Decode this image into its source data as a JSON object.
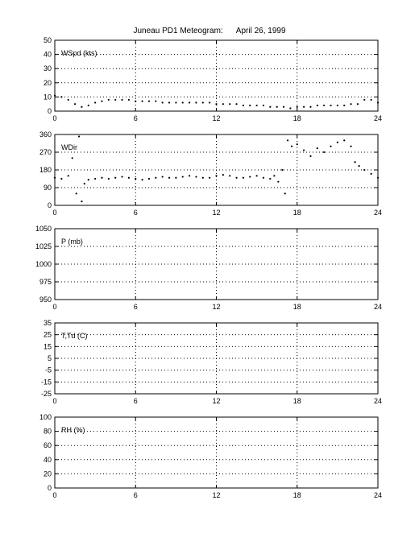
{
  "title": "Juneau PD1 Meteogram:      April 26, 1999",
  "chart_data": [
    {
      "type": "scatter",
      "name": "wind-speed",
      "label": "WSpd (kts)",
      "xlim": [
        0,
        24
      ],
      "ylim": [
        0,
        50
      ],
      "xticks": [
        0,
        6,
        12,
        18,
        24
      ],
      "yticks": [
        0,
        10,
        20,
        30,
        40,
        50
      ],
      "grid": true,
      "x": [
        0,
        0.5,
        1,
        1.5,
        2,
        2.5,
        3,
        3.5,
        4,
        4.5,
        5,
        5.5,
        6,
        6.5,
        7,
        7.5,
        8,
        8.5,
        9,
        9.5,
        10,
        10.5,
        11,
        11.5,
        12,
        12.5,
        13,
        13.5,
        14,
        14.5,
        15,
        15.5,
        16,
        16.5,
        17,
        17.5,
        18,
        18.5,
        19,
        19.5,
        20,
        20.5,
        21,
        21.5,
        22,
        22.5,
        23,
        23.5,
        24
      ],
      "y": [
        11,
        10,
        8,
        5,
        3,
        4,
        6,
        7,
        8,
        8,
        8,
        8,
        7,
        7,
        7,
        7,
        6,
        6,
        6,
        6,
        6,
        6,
        6,
        6,
        5,
        5,
        5,
        5,
        4,
        4,
        4,
        4,
        3,
        3,
        3,
        2,
        3,
        3,
        3,
        4,
        4,
        4,
        4,
        4,
        5,
        5,
        8,
        8,
        6
      ]
    },
    {
      "type": "scatter",
      "name": "wind-direction",
      "label": "WDir",
      "xlim": [
        0,
        24
      ],
      "ylim": [
        0,
        360
      ],
      "xticks": [
        0,
        6,
        12,
        18,
        24
      ],
      "yticks": [
        0,
        90,
        180,
        270,
        360
      ],
      "grid": true,
      "x": [
        0,
        0.5,
        1,
        1.3,
        1.6,
        1.8,
        2,
        2.2,
        2.5,
        3,
        3.5,
        4,
        4.5,
        5,
        5.5,
        6,
        6.5,
        7,
        7.5,
        8,
        8.5,
        9,
        9.5,
        10,
        10.5,
        11,
        11.5,
        12,
        12.5,
        13,
        13.5,
        14,
        14.5,
        15,
        15.5,
        16,
        16.3,
        16.6,
        16.9,
        17.1,
        17.3,
        17.6,
        18,
        18.5,
        19,
        19.5,
        20,
        20.5,
        21,
        21.5,
        22,
        22.3,
        22.6,
        23,
        23.5,
        24
      ],
      "y": [
        140,
        135,
        150,
        240,
        60,
        350,
        20,
        110,
        130,
        135,
        140,
        135,
        140,
        145,
        140,
        135,
        130,
        135,
        140,
        145,
        140,
        140,
        145,
        150,
        145,
        140,
        140,
        150,
        155,
        150,
        140,
        140,
        145,
        150,
        140,
        135,
        150,
        120,
        180,
        60,
        330,
        300,
        310,
        280,
        250,
        290,
        270,
        300,
        320,
        330,
        300,
        220,
        200,
        180,
        160,
        140
      ]
    },
    {
      "type": "scatter",
      "name": "pressure",
      "label": "P (mb)",
      "xlim": [
        0,
        24
      ],
      "ylim": [
        950,
        1050
      ],
      "xticks": [
        0,
        6,
        12,
        18,
        24
      ],
      "yticks": [
        950,
        975,
        1000,
        1025,
        1050
      ],
      "grid": true,
      "x": [],
      "y": []
    },
    {
      "type": "scatter",
      "name": "temperature",
      "label": "T,Td (C)",
      "xlim": [
        0,
        24
      ],
      "ylim": [
        -25,
        35
      ],
      "xticks": [
        0,
        6,
        12,
        18,
        24
      ],
      "yticks": [
        -25,
        -15,
        -5,
        5,
        15,
        25,
        35
      ],
      "grid": true,
      "x": [],
      "y": []
    },
    {
      "type": "scatter",
      "name": "relative-humidity",
      "label": "RH (%)",
      "xlim": [
        0,
        24
      ],
      "ylim": [
        0,
        100
      ],
      "xticks": [
        0,
        6,
        12,
        18,
        24
      ],
      "yticks": [
        0,
        20,
        40,
        60,
        80,
        100
      ],
      "grid": true,
      "x": [],
      "y": []
    }
  ]
}
